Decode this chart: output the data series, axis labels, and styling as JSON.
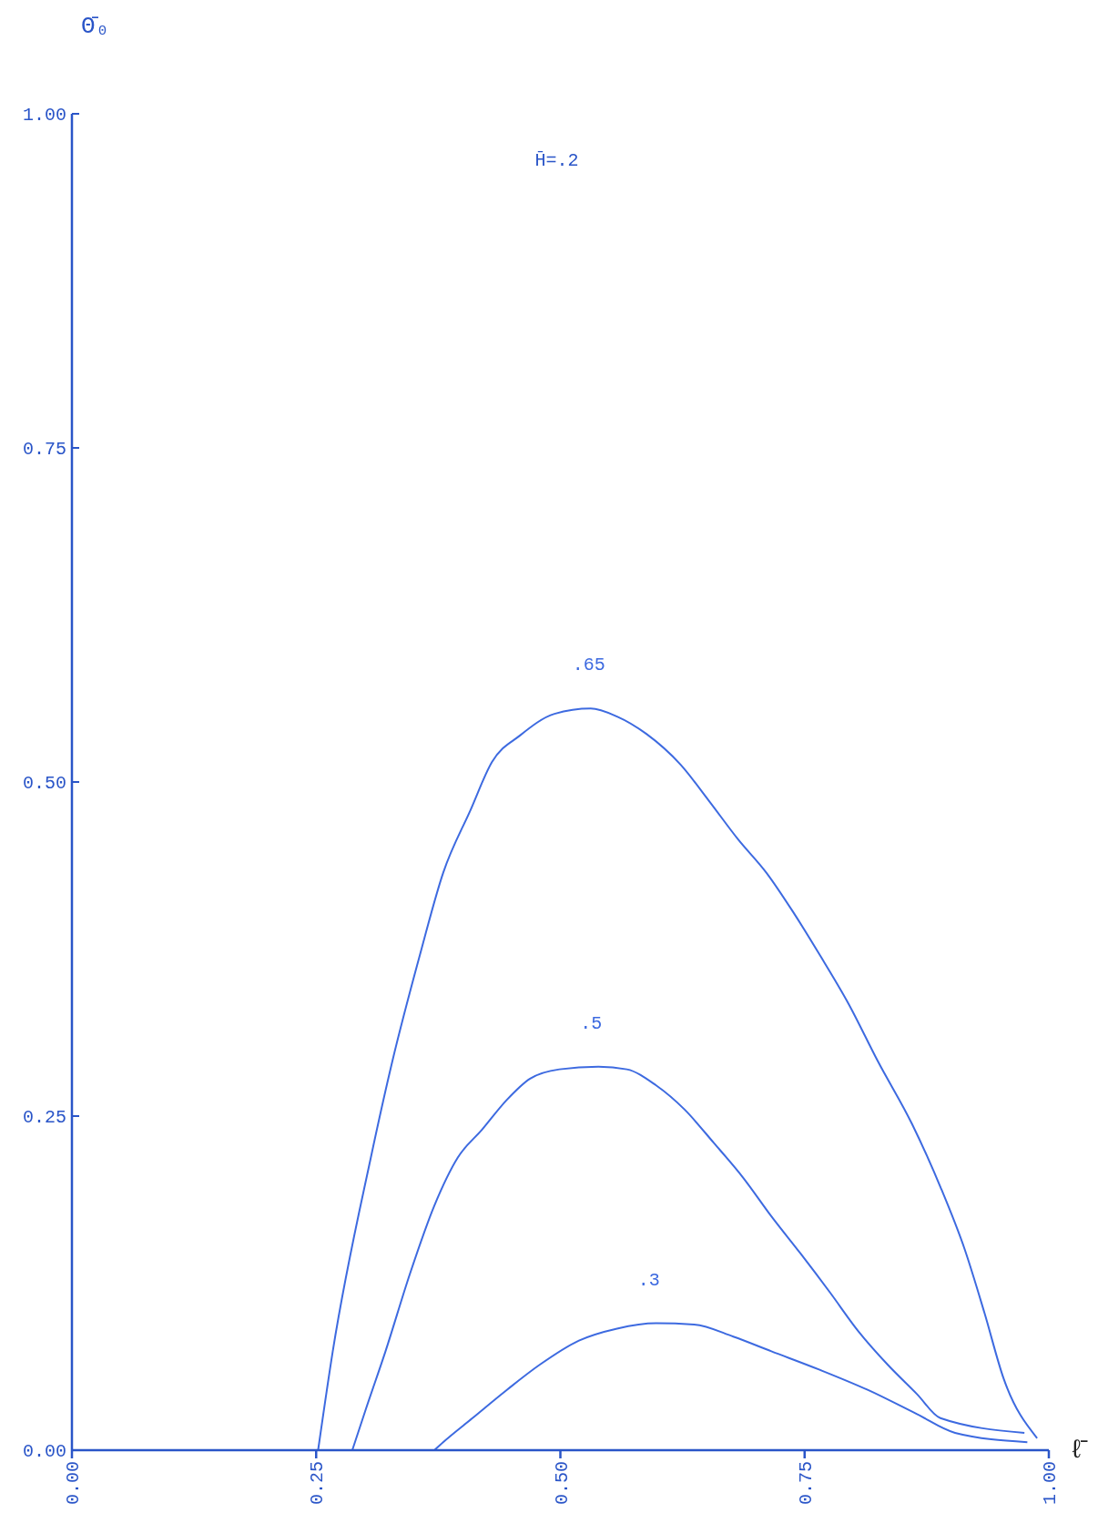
{
  "chart_data": {
    "type": "line",
    "xlabel": "ℓ̄",
    "ylabel": "Θ̄₀",
    "annotations": [
      "H̄=.2"
    ],
    "xlim": [
      0,
      1
    ],
    "ylim": [
      0,
      1
    ],
    "xticks": [
      {
        "value": 0,
        "label": "0.00"
      },
      {
        "value": 0.25,
        "label": "0.25"
      },
      {
        "value": 0.5,
        "label": "0.50"
      },
      {
        "value": 0.75,
        "label": "0.75"
      },
      {
        "value": 1,
        "label": "1.00"
      }
    ],
    "yticks": [
      {
        "value": 0,
        "label": "0.00"
      },
      {
        "value": 0.25,
        "label": "0.25"
      },
      {
        "value": 0.5,
        "label": "0.50"
      },
      {
        "value": 0.75,
        "label": "0.75"
      },
      {
        "value": 1,
        "label": "1.00"
      }
    ],
    "grid": false,
    "series": [
      {
        "name": ".65",
        "color": "#3d6ae0",
        "x": [
          0.252,
          0.267,
          0.306,
          0.328,
          0.356,
          0.38,
          0.408,
          0.43,
          0.459,
          0.494,
          0.531,
          0.558,
          0.588,
          0.623,
          0.652,
          0.682,
          0.711,
          0.738,
          0.766,
          0.795,
          0.825,
          0.86,
          0.889,
          0.914,
          0.934,
          0.954,
          0.988
        ],
        "values": [
          0,
          0.074,
          0.219,
          0.291,
          0.37,
          0.432,
          0.479,
          0.515,
          0.535,
          0.551,
          0.555,
          0.549,
          0.536,
          0.513,
          0.486,
          0.457,
          0.432,
          0.403,
          0.37,
          0.334,
          0.291,
          0.244,
          0.197,
          0.15,
          0.103,
          0.053,
          0.009
        ]
      },
      {
        "name": ".5",
        "color": "#3d6ae0",
        "x": [
          0.287,
          0.301,
          0.321,
          0.346,
          0.371,
          0.395,
          0.42,
          0.445,
          0.469,
          0.499,
          0.539,
          0.568,
          0.598,
          0.627,
          0.657,
          0.687,
          0.716,
          0.746,
          0.776,
          0.805,
          0.835,
          0.865,
          0.889,
          0.975
        ],
        "values": [
          0,
          0.031,
          0.074,
          0.132,
          0.183,
          0.219,
          0.24,
          0.262,
          0.278,
          0.285,
          0.287,
          0.285,
          0.273,
          0.255,
          0.23,
          0.204,
          0.175,
          0.147,
          0.118,
          0.089,
          0.064,
          0.042,
          0.024,
          0.013
        ]
      },
      {
        "name": ".3",
        "color": "#3d6ae0",
        "x": [
          0.371,
          0.38,
          0.41,
          0.445,
          0.479,
          0.519,
          0.558,
          0.598,
          0.637,
          0.677,
          0.716,
          0.766,
          0.815,
          0.865,
          0.904,
          0.978
        ],
        "values": [
          0,
          0.006,
          0.024,
          0.045,
          0.064,
          0.082,
          0.091,
          0.095,
          0.094,
          0.085,
          0.074,
          0.06,
          0.045,
          0.027,
          0.013,
          0.006
        ]
      }
    ]
  }
}
